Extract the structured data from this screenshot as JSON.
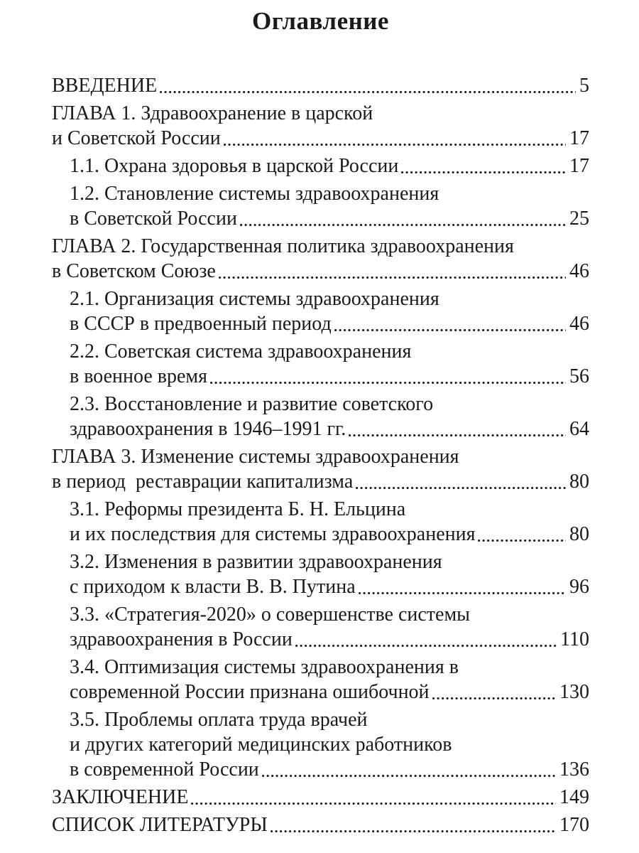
{
  "title": "Оглавление",
  "toc": {
    "entries": [
      {
        "level": 0,
        "lines": [
          "ВВЕДЕНИЕ"
        ],
        "page": "5"
      },
      {
        "level": 0,
        "lines": [
          "ГЛАВА 1. Здравоохранение в царской",
          "и Советской России"
        ],
        "page": "17"
      },
      {
        "level": 1,
        "lines": [
          "1.1. Охрана здоровья в царской России"
        ],
        "page": "17"
      },
      {
        "level": 1,
        "lines": [
          "1.2. Становление системы здравоохранения",
          "в Советской России"
        ],
        "page": "25"
      },
      {
        "level": 0,
        "lines": [
          "ГЛАВА 2. Государственная политика здравоохранения",
          "в Советском Союзе"
        ],
        "page": "46"
      },
      {
        "level": 1,
        "lines": [
          "2.1. Организация системы здравоохранения",
          "в СССР в предвоенный период"
        ],
        "page": "46"
      },
      {
        "level": 1,
        "lines": [
          "2.2. Советская система здравоохранения",
          "в военное время"
        ],
        "page": "56"
      },
      {
        "level": 1,
        "lines": [
          "2.3. Восстановление и развитие советского",
          "здравоохранения в 1946–1991 гг."
        ],
        "page": "64"
      },
      {
        "level": 0,
        "lines": [
          "ГЛАВА 3. Изменение системы здравоохранения",
          "в период  реставрации капитализма"
        ],
        "page": "80"
      },
      {
        "level": 1,
        "lines": [
          "3.1. Реформы президента Б. Н. Ельцина",
          "и их последствия для системы здравоохранения"
        ],
        "page": "80"
      },
      {
        "level": 1,
        "lines": [
          "3.2. Изменения в развитии здравоохранения",
          "с приходом к власти В. В. Путина"
        ],
        "page": "96"
      },
      {
        "level": 1,
        "lines": [
          "3.3. «Стратегия-2020» о совершенстве системы",
          "здравоохранения в России"
        ],
        "page": "110"
      },
      {
        "level": 1,
        "lines": [
          "3.4. Оптимизация системы здравоохранения в",
          "современной России признана ошибочной"
        ],
        "page": "130"
      },
      {
        "level": 1,
        "lines": [
          "3.5. Проблемы оплата труда врачей",
          "и других категорий медицинских работников",
          "в современной России"
        ],
        "page": "136"
      },
      {
        "level": 0,
        "lines": [
          "ЗАКЛЮЧЕНИЕ"
        ],
        "page": "149"
      },
      {
        "level": 0,
        "lines": [
          "СПИСОК ЛИТЕРАТУРЫ"
        ],
        "page": "170"
      }
    ]
  }
}
